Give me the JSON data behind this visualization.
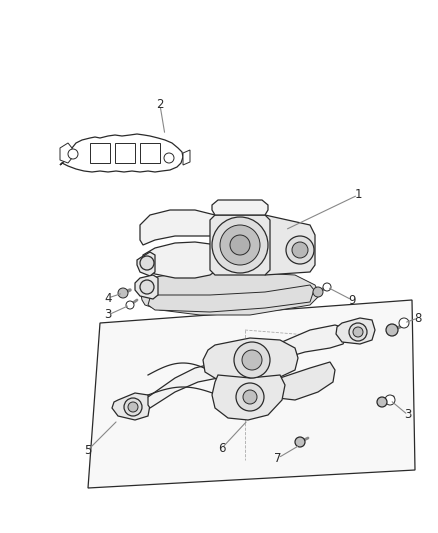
{
  "bg_color": "#ffffff",
  "line_color": "#2a2a2a",
  "label_color": "#2a2a2a",
  "label_fontsize": 8.5,
  "leader_color": "#888888",
  "part_fill": "#f2f2f2",
  "part_fill2": "#e8e8e8",
  "part_fill3": "#dedede",
  "shadow_fill": "#d0d0d0"
}
